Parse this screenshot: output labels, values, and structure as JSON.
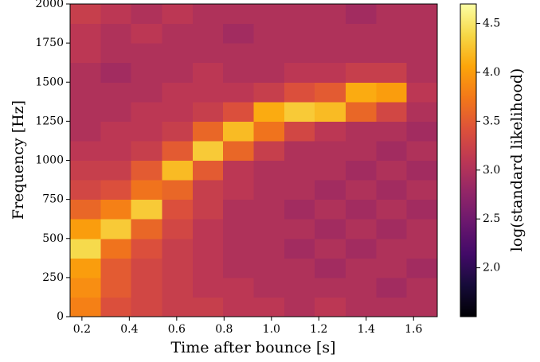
{
  "chart_data": {
    "type": "heatmap",
    "xlabel": "Time after bounce [s]",
    "ylabel": "Frequency [Hz]",
    "colorbar_label": "log(standard likelihood)",
    "colormap": "inferno",
    "xbins": [
      0.15,
      0.279,
      0.408,
      0.538,
      0.667,
      0.796,
      0.925,
      1.054,
      1.183,
      1.313,
      1.442,
      1.571,
      1.7
    ],
    "ybins": [
      0,
      125,
      250,
      375,
      500,
      625,
      750,
      875,
      1000,
      1125,
      1250,
      1375,
      1500,
      1625,
      1750,
      1875,
      2000
    ],
    "z": [
      [
        3.8,
        3.4,
        3.3,
        3.2,
        3.2,
        3.1,
        3.1,
        3.0,
        3.1,
        3.0,
        3.0,
        3.0
      ],
      [
        3.9,
        3.5,
        3.3,
        3.2,
        3.1,
        3.1,
        3.0,
        3.0,
        3.0,
        3.0,
        2.9,
        3.0
      ],
      [
        4.0,
        3.5,
        3.3,
        3.2,
        3.1,
        3.0,
        3.0,
        3.0,
        2.9,
        3.0,
        3.0,
        2.9
      ],
      [
        4.4,
        3.7,
        3.4,
        3.2,
        3.1,
        3.0,
        3.0,
        2.9,
        3.0,
        2.9,
        3.0,
        3.0
      ],
      [
        4.0,
        4.3,
        3.6,
        3.3,
        3.1,
        3.0,
        3.0,
        3.0,
        2.9,
        3.0,
        2.9,
        3.0
      ],
      [
        3.6,
        3.8,
        4.3,
        3.4,
        3.2,
        3.0,
        3.0,
        2.9,
        3.0,
        2.9,
        3.0,
        2.9
      ],
      [
        3.3,
        3.4,
        3.7,
        3.6,
        3.2,
        3.1,
        3.0,
        3.0,
        2.9,
        3.0,
        2.9,
        3.0
      ],
      [
        3.2,
        3.2,
        3.5,
        4.2,
        3.5,
        3.1,
        3.0,
        3.0,
        3.0,
        2.9,
        3.0,
        2.9
      ],
      [
        3.1,
        3.1,
        3.2,
        3.5,
        4.3,
        3.6,
        3.2,
        3.0,
        3.0,
        3.0,
        2.9,
        3.0
      ],
      [
        3.0,
        3.1,
        3.1,
        3.2,
        3.6,
        4.2,
        3.7,
        3.3,
        3.1,
        3.0,
        3.0,
        2.9
      ],
      [
        3.0,
        3.0,
        3.1,
        3.1,
        3.2,
        3.4,
        4.1,
        4.3,
        4.2,
        3.6,
        3.3,
        3.0
      ],
      [
        3.0,
        3.0,
        3.0,
        3.1,
        3.1,
        3.1,
        3.2,
        3.4,
        3.5,
        4.1,
        4.0,
        3.1
      ],
      [
        3.0,
        2.9,
        3.0,
        3.0,
        3.1,
        3.0,
        3.0,
        3.1,
        3.1,
        3.2,
        3.2,
        3.0
      ],
      [
        3.1,
        3.0,
        3.0,
        3.0,
        3.0,
        3.0,
        3.0,
        3.0,
        3.0,
        3.0,
        3.0,
        3.0
      ],
      [
        3.1,
        3.0,
        3.1,
        3.0,
        3.0,
        2.9,
        3.0,
        3.0,
        3.0,
        3.0,
        3.0,
        3.0
      ],
      [
        3.2,
        3.1,
        3.0,
        3.1,
        3.0,
        3.0,
        3.0,
        3.0,
        3.0,
        2.9,
        3.0,
        3.0
      ]
    ],
    "xlim": [
      0.15,
      1.7
    ],
    "ylim": [
      0,
      2000
    ],
    "clim": [
      1.5,
      4.7
    ],
    "xticks": [
      0.2,
      0.4,
      0.6,
      0.8,
      {
        "value": 1,
        "label": "1.0"
      },
      1.2,
      1.4,
      1.6
    ],
    "yticks": [
      0,
      250,
      500,
      750,
      1000,
      1250,
      1500,
      1750,
      2000
    ],
    "cticks": [
      {
        "value": 2,
        "label": "2.0"
      },
      2.5,
      {
        "value": 3,
        "label": "3.0"
      },
      3.5,
      {
        "value": 4,
        "label": "4.0"
      },
      4.5
    ]
  }
}
